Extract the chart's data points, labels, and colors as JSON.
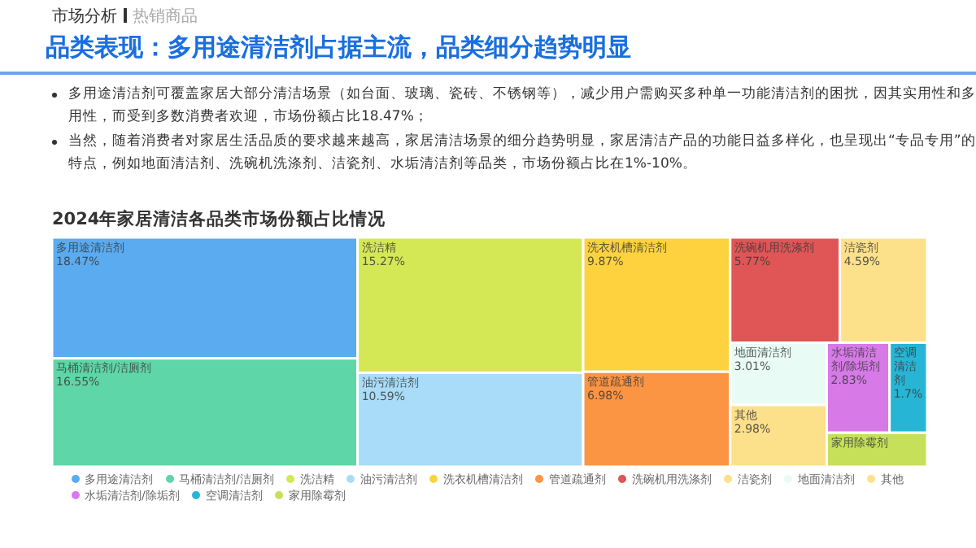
{
  "chart_data": {
    "type": "other",
    "title": "2024年家居清洁各品类市场份额占比情况",
    "annotations": [
      "市场分析",
      "热销商品",
      "品类表现：多用途清洁剂占据主流，品类细分趋势明显",
      "多用途清洁剂可覆盖家居大部分清洁场景（如台面、玻璃、瓷砖、不锈钢等），减少用户需购买多种单一功能清洁剂的困扰，因其实用性和多用性，而受到多数消费者欢迎，市场份额占比18.47%；",
      "当然，随着消费者对家居生活品质的要求越来越高，家居清洁场景的细分趋势明显，家居清洁产品的功能日益多样化，也呈现出“专品专用”的特点，例如地面清洁剂、洗碗机洗涤剂、洁瓷剂、水垢清洁剂等品类，市场份额占比在1%-10%。"
    ],
    "categories": [
      "多用途清洁剂",
      "马桶清洁剂/洁厕剂",
      "洗洁精",
      "油污清洁剂",
      "洗衣机槽清洁剂",
      "管道疏通剂",
      "洗碗机用洗涤剂",
      "洁瓷剂",
      "地面清洁剂",
      "其他",
      "水垢清洁剂/除垢剂",
      "空调清洁剂",
      "家用除霉剂"
    ],
    "values": [
      18.47,
      16.55,
      15.27,
      10.59,
      9.87,
      6.98,
      5.77,
      4.59,
      3.01,
      2.98,
      2.83,
      1.7,
      null
    ],
    "value_labels": [
      "18.47%",
      "16.55%",
      "15.27%",
      "10.59%",
      "9.87%",
      "6.98%",
      "5.77%",
      "4.59%",
      "3.01%",
      "2.98%",
      "2.83%",
      "1.7%",
      null
    ],
    "colors": [
      "#5aabf0",
      "#5fd6a8",
      "#d4e855",
      "#a8dcf8",
      "#fdd23e",
      "#fb9443",
      "#e05555",
      "#fde08a",
      "#e9fbf5",
      "#fde08a",
      "#d77ae8",
      "#27b5d6",
      "#c6e05a"
    ]
  }
}
